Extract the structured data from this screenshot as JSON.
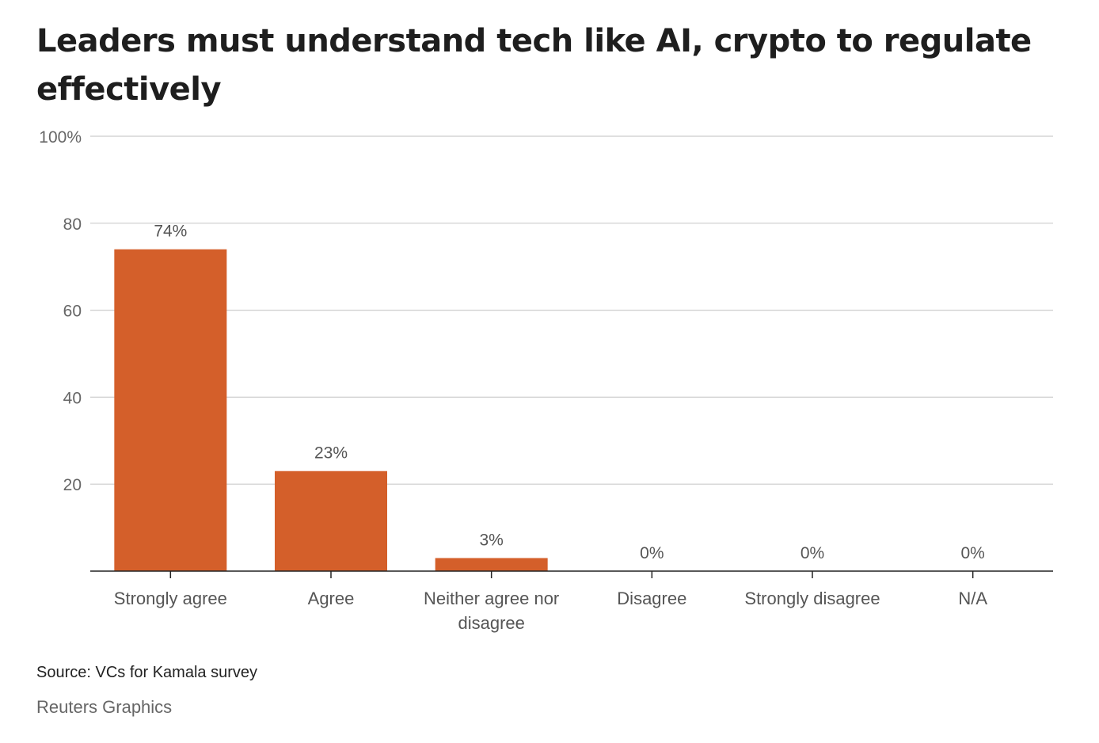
{
  "title": "Leaders must understand tech like AI, crypto to regulate effectively",
  "source": "Source: VCs for Kamala survey",
  "credit": "Reuters Graphics",
  "colors": {
    "bar": "#d45f2a",
    "grid": "#cccccc",
    "axis": "#222222"
  },
  "chart_data": {
    "type": "bar",
    "title": "Leaders must understand tech like AI, crypto to regulate effectively",
    "categories": [
      "Strongly agree",
      "Agree",
      "Neither agree nor disagree",
      "Disagree",
      "Strongly disagree",
      "N/A"
    ],
    "values": [
      74,
      23,
      3,
      0,
      0,
      0
    ],
    "value_labels": [
      "74%",
      "23%",
      "3%",
      "0%",
      "0%",
      "0%"
    ],
    "xlabel": "",
    "ylabel": "",
    "ylim": [
      0,
      100
    ],
    "yticks": [
      20,
      40,
      60,
      80,
      100
    ],
    "ytick_labels": [
      "20",
      "40",
      "60",
      "80",
      "100%"
    ],
    "grid": true,
    "legend": "none"
  }
}
